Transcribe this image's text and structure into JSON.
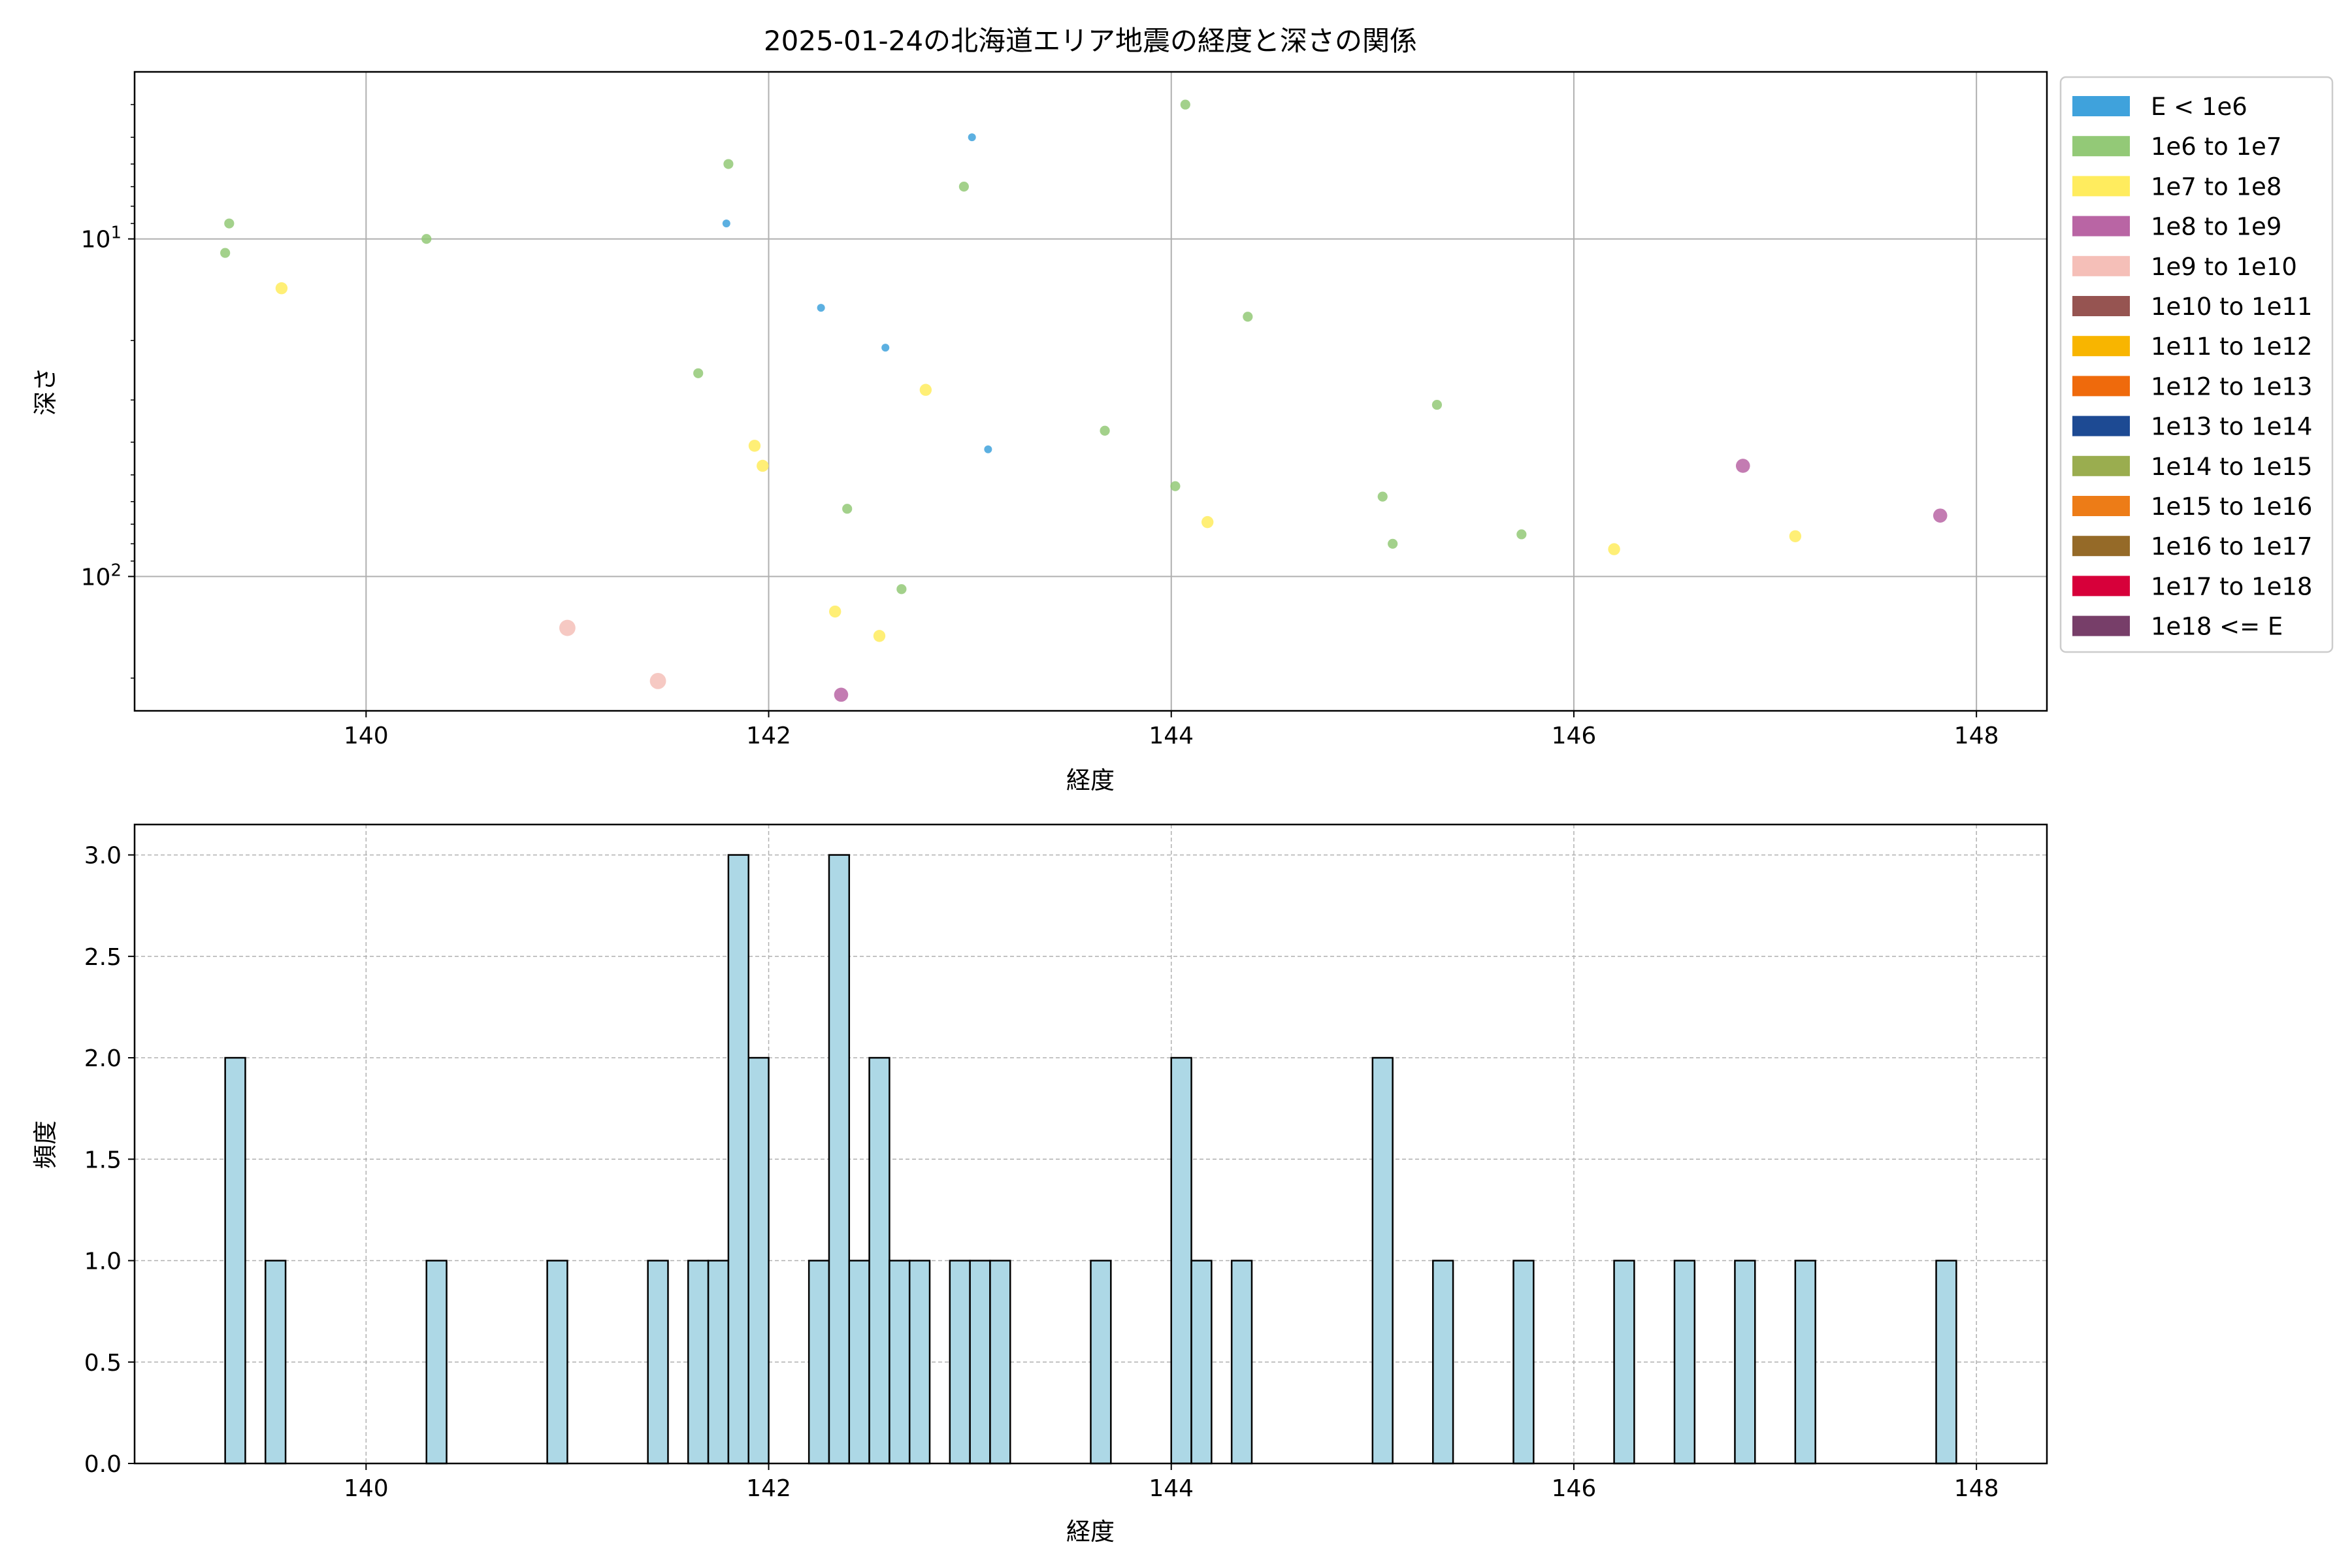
{
  "figure_title": "2025-01-24の北海道エリア地震の経度と深さの関係",
  "chart_data": [
    {
      "type": "scatter",
      "title": "2025-01-24の北海道エリア地震の経度と深さの関係",
      "xlabel": "経度",
      "ylabel": "深さ",
      "xlim": [
        138.85,
        148.35
      ],
      "ylim": [
        250,
        3.2
      ],
      "y_scale": "log",
      "y_inverted": true,
      "x_ticks": [
        140,
        142,
        144,
        146,
        148
      ],
      "x_tick_labels": [
        "140",
        "142",
        "144",
        "146",
        "148"
      ],
      "y_ticks": [
        10,
        100
      ],
      "y_tick_labels": [
        "10^1",
        "10^2"
      ],
      "grid": true,
      "legend_position": "outside-top-right",
      "legend": [
        {
          "label": "E < 1e6",
          "color": "#3fa2dc"
        },
        {
          "label": "1e6 to 1e7",
          "color": "#93c977"
        },
        {
          "label": "1e7 to 1e8",
          "color": "#ffec5e"
        },
        {
          "label": "1e8 to 1e9",
          "color": "#b965a4"
        },
        {
          "label": "1e9 to 1e10",
          "color": "#f5bfb8"
        },
        {
          "label": "1e10 to 1e11",
          "color": "#965451"
        },
        {
          "label": "1e11 to 1e12",
          "color": "#f8b500"
        },
        {
          "label": "1e12 to 1e13",
          "color": "#ef6a0c"
        },
        {
          "label": "1e13 to 1e14",
          "color": "#1d4a93"
        },
        {
          "label": "1e14 to 1e15",
          "color": "#9aad4f"
        },
        {
          "label": "1e15 to 1e16",
          "color": "#ed7c17"
        },
        {
          "label": "1e16 to 1e17",
          "color": "#956a28"
        },
        {
          "label": "1e17 to 1e18",
          "color": "#d7003a"
        },
        {
          "label": "1e18 <= E",
          "color": "#773e69"
        }
      ],
      "points": [
        {
          "x": 139.3,
          "y": 11,
          "cls": 1
        },
        {
          "x": 139.32,
          "y": 9,
          "cls": 1
        },
        {
          "x": 139.58,
          "y": 14,
          "cls": 2
        },
        {
          "x": 140.3,
          "y": 10,
          "cls": 1
        },
        {
          "x": 141.0,
          "y": 142,
          "cls": 4
        },
        {
          "x": 141.45,
          "y": 204,
          "cls": 4
        },
        {
          "x": 141.65,
          "y": 25,
          "cls": 1
        },
        {
          "x": 141.8,
          "y": 6,
          "cls": 1
        },
        {
          "x": 141.79,
          "y": 9,
          "cls": 0
        },
        {
          "x": 141.93,
          "y": 41,
          "cls": 2
        },
        {
          "x": 141.97,
          "y": 47,
          "cls": 2
        },
        {
          "x": 142.26,
          "y": 16,
          "cls": 0
        },
        {
          "x": 142.33,
          "y": 127,
          "cls": 2
        },
        {
          "x": 142.36,
          "y": 224,
          "cls": 3
        },
        {
          "x": 142.39,
          "y": 63,
          "cls": 1
        },
        {
          "x": 142.55,
          "y": 150,
          "cls": 2
        },
        {
          "x": 142.58,
          "y": 21,
          "cls": 0
        },
        {
          "x": 142.66,
          "y": 109,
          "cls": 1
        },
        {
          "x": 142.78,
          "y": 28,
          "cls": 2
        },
        {
          "x": 142.97,
          "y": 7,
          "cls": 1
        },
        {
          "x": 143.01,
          "y": 5,
          "cls": 0
        },
        {
          "x": 143.09,
          "y": 42,
          "cls": 0
        },
        {
          "x": 143.67,
          "y": 37,
          "cls": 1
        },
        {
          "x": 144.02,
          "y": 54,
          "cls": 1
        },
        {
          "x": 144.07,
          "y": 4,
          "cls": 1
        },
        {
          "x": 144.18,
          "y": 69,
          "cls": 2
        },
        {
          "x": 144.38,
          "y": 17,
          "cls": 1
        },
        {
          "x": 145.05,
          "y": 58,
          "cls": 1
        },
        {
          "x": 145.1,
          "y": 80,
          "cls": 1
        },
        {
          "x": 145.32,
          "y": 31,
          "cls": 1
        },
        {
          "x": 145.74,
          "y": 75,
          "cls": 1
        },
        {
          "x": 146.2,
          "y": 83,
          "cls": 2
        },
        {
          "x": 146.84,
          "y": 47,
          "cls": 3
        },
        {
          "x": 147.1,
          "y": 76,
          "cls": 2
        },
        {
          "x": 147.82,
          "y": 66,
          "cls": 3
        }
      ]
    },
    {
      "type": "bar",
      "title": "",
      "xlabel": "経度",
      "ylabel": "頻度",
      "xlim": [
        138.85,
        148.35
      ],
      "ylim": [
        0,
        3.15
      ],
      "x_ticks": [
        140,
        142,
        144,
        146,
        148
      ],
      "x_tick_labels": [
        "140",
        "142",
        "144",
        "146",
        "148"
      ],
      "y_ticks": [
        0,
        0.5,
        1,
        1.5,
        2,
        2.5,
        3
      ],
      "y_tick_labels": [
        "0.0",
        "0.5",
        "1.0",
        "1.5",
        "2.0",
        "2.5",
        "3.0"
      ],
      "grid": true,
      "bar_color": "#add8e6",
      "bin_start": 139.3,
      "bin_width": 0.1,
      "bins": [
        {
          "x": 139.3,
          "value": 2
        },
        {
          "x": 139.5,
          "value": 1
        },
        {
          "x": 140.3,
          "value": 1
        },
        {
          "x": 140.9,
          "value": 1
        },
        {
          "x": 141.4,
          "value": 1
        },
        {
          "x": 141.6,
          "value": 1
        },
        {
          "x": 141.7,
          "value": 1
        },
        {
          "x": 141.8,
          "value": 3
        },
        {
          "x": 141.9,
          "value": 2
        },
        {
          "x": 142.2,
          "value": 1
        },
        {
          "x": 142.3,
          "value": 3
        },
        {
          "x": 142.4,
          "value": 1
        },
        {
          "x": 142.5,
          "value": 2
        },
        {
          "x": 142.6,
          "value": 1
        },
        {
          "x": 142.7,
          "value": 1
        },
        {
          "x": 142.9,
          "value": 1
        },
        {
          "x": 143.0,
          "value": 1
        },
        {
          "x": 143.1,
          "value": 1
        },
        {
          "x": 143.6,
          "value": 1
        },
        {
          "x": 144.0,
          "value": 2
        },
        {
          "x": 144.1,
          "value": 1
        },
        {
          "x": 144.3,
          "value": 1
        },
        {
          "x": 145.0,
          "value": 2
        },
        {
          "x": 145.3,
          "value": 1
        },
        {
          "x": 145.7,
          "value": 1
        },
        {
          "x": 146.2,
          "value": 1
        },
        {
          "x": 146.5,
          "value": 1
        },
        {
          "x": 146.8,
          "value": 1
        },
        {
          "x": 147.1,
          "value": 1
        },
        {
          "x": 147.8,
          "value": 1
        }
      ]
    }
  ]
}
